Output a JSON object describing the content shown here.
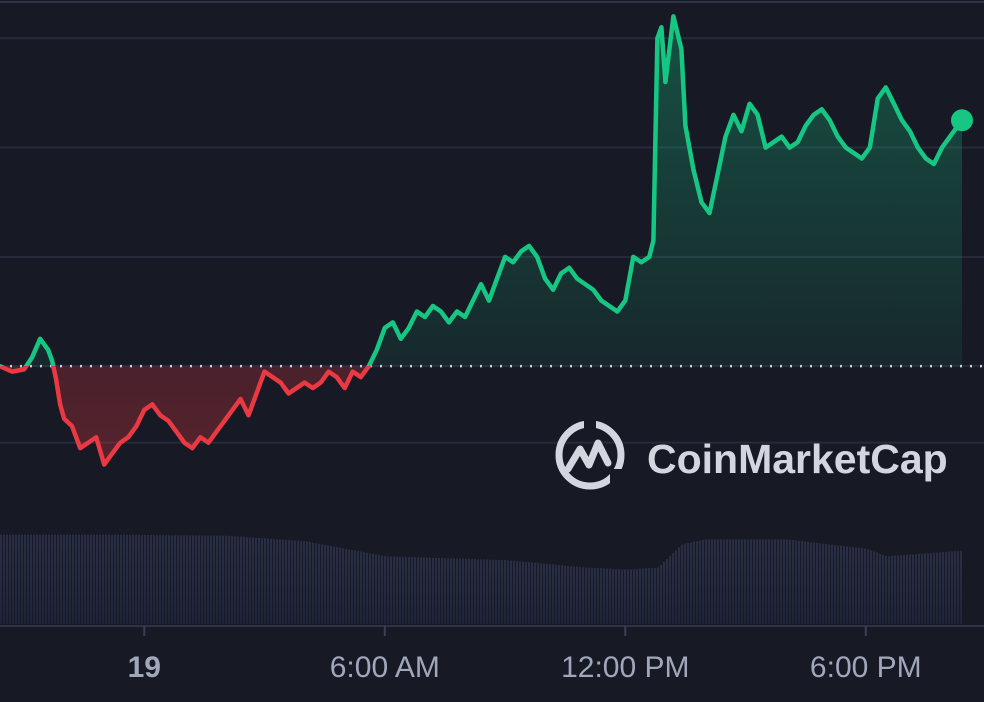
{
  "chart_data": {
    "type": "line",
    "x_ticks": [
      "19",
      "6:00 AM",
      "12:00 PM",
      "6:00 PM"
    ],
    "x_tick_hours": [
      0,
      6,
      12,
      18
    ],
    "x_range_hours": [
      -3.6,
      20.4
    ],
    "baseline_value": 0,
    "y_range": [
      -95,
      335
    ],
    "gridline_values": [
      -70,
      0,
      100,
      200,
      300
    ],
    "grid": true,
    "series": [
      {
        "points": [
          [
            -3.6,
            0
          ],
          [
            -3.3,
            -5
          ],
          [
            -3.0,
            -3
          ],
          [
            -2.8,
            8
          ],
          [
            -2.6,
            25
          ],
          [
            -2.4,
            15
          ],
          [
            -2.3,
            5
          ],
          [
            -2.2,
            -12
          ],
          [
            -2.1,
            -35
          ],
          [
            -2.0,
            -48
          ],
          [
            -1.8,
            -55
          ],
          [
            -1.6,
            -75
          ],
          [
            -1.4,
            -70
          ],
          [
            -1.2,
            -65
          ],
          [
            -1.0,
            -90
          ],
          [
            -0.8,
            -80
          ],
          [
            -0.6,
            -70
          ],
          [
            -0.4,
            -65
          ],
          [
            -0.2,
            -55
          ],
          [
            0.0,
            -40
          ],
          [
            0.2,
            -35
          ],
          [
            0.4,
            -45
          ],
          [
            0.6,
            -50
          ],
          [
            0.8,
            -60
          ],
          [
            1.0,
            -70
          ],
          [
            1.2,
            -75
          ],
          [
            1.4,
            -65
          ],
          [
            1.6,
            -70
          ],
          [
            1.8,
            -60
          ],
          [
            2.0,
            -50
          ],
          [
            2.2,
            -40
          ],
          [
            2.4,
            -30
          ],
          [
            2.6,
            -45
          ],
          [
            2.8,
            -25
          ],
          [
            3.0,
            -5
          ],
          [
            3.2,
            -10
          ],
          [
            3.4,
            -15
          ],
          [
            3.6,
            -25
          ],
          [
            3.8,
            -20
          ],
          [
            4.0,
            -15
          ],
          [
            4.2,
            -20
          ],
          [
            4.4,
            -15
          ],
          [
            4.6,
            -5
          ],
          [
            4.8,
            -10
          ],
          [
            5.0,
            -20
          ],
          [
            5.2,
            -5
          ],
          [
            5.4,
            -10
          ],
          [
            5.6,
            0
          ],
          [
            5.8,
            15
          ],
          [
            6.0,
            35
          ],
          [
            6.2,
            40
          ],
          [
            6.4,
            25
          ],
          [
            6.6,
            35
          ],
          [
            6.8,
            50
          ],
          [
            7.0,
            45
          ],
          [
            7.2,
            55
          ],
          [
            7.4,
            50
          ],
          [
            7.6,
            40
          ],
          [
            7.8,
            50
          ],
          [
            8.0,
            45
          ],
          [
            8.2,
            60
          ],
          [
            8.4,
            75
          ],
          [
            8.6,
            60
          ],
          [
            8.8,
            80
          ],
          [
            9.0,
            100
          ],
          [
            9.2,
            95
          ],
          [
            9.4,
            105
          ],
          [
            9.6,
            110
          ],
          [
            9.8,
            100
          ],
          [
            10.0,
            80
          ],
          [
            10.2,
            70
          ],
          [
            10.4,
            85
          ],
          [
            10.6,
            90
          ],
          [
            10.8,
            80
          ],
          [
            11.0,
            75
          ],
          [
            11.2,
            70
          ],
          [
            11.4,
            60
          ],
          [
            11.6,
            55
          ],
          [
            11.8,
            50
          ],
          [
            12.0,
            60
          ],
          [
            12.2,
            100
          ],
          [
            12.4,
            95
          ],
          [
            12.6,
            100
          ],
          [
            12.7,
            115
          ],
          [
            12.8,
            300
          ],
          [
            12.9,
            310
          ],
          [
            13.0,
            260
          ],
          [
            13.2,
            320
          ],
          [
            13.4,
            290
          ],
          [
            13.5,
            220
          ],
          [
            13.7,
            180
          ],
          [
            13.9,
            150
          ],
          [
            14.1,
            140
          ],
          [
            14.3,
            175
          ],
          [
            14.5,
            210
          ],
          [
            14.7,
            230
          ],
          [
            14.9,
            215
          ],
          [
            15.1,
            240
          ],
          [
            15.3,
            230
          ],
          [
            15.5,
            200
          ],
          [
            15.7,
            205
          ],
          [
            15.9,
            210
          ],
          [
            16.1,
            200
          ],
          [
            16.3,
            205
          ],
          [
            16.5,
            220
          ],
          [
            16.7,
            230
          ],
          [
            16.9,
            235
          ],
          [
            17.1,
            225
          ],
          [
            17.3,
            210
          ],
          [
            17.5,
            200
          ],
          [
            17.7,
            195
          ],
          [
            17.9,
            190
          ],
          [
            18.1,
            200
          ],
          [
            18.3,
            245
          ],
          [
            18.5,
            255
          ],
          [
            18.7,
            240
          ],
          [
            18.9,
            225
          ],
          [
            19.1,
            215
          ],
          [
            19.3,
            200
          ],
          [
            19.5,
            190
          ],
          [
            19.7,
            185
          ],
          [
            19.9,
            200
          ],
          [
            20.1,
            210
          ],
          [
            20.4,
            225
          ]
        ]
      }
    ],
    "volume": [
      [
        -3.6,
        0.95
      ],
      [
        -1.0,
        0.95
      ],
      [
        2.0,
        0.94
      ],
      [
        4.0,
        0.88
      ],
      [
        6.0,
        0.72
      ],
      [
        9.0,
        0.68
      ],
      [
        11.0,
        0.6
      ],
      [
        12.0,
        0.58
      ],
      [
        12.8,
        0.6
      ],
      [
        13.4,
        0.85
      ],
      [
        14.0,
        0.9
      ],
      [
        16.0,
        0.9
      ],
      [
        18.0,
        0.8
      ],
      [
        18.5,
        0.72
      ],
      [
        20.4,
        0.78
      ]
    ],
    "up_color": "#16c784",
    "down_color": "#ea3943"
  },
  "watermark": {
    "text": "CoinMarketCap",
    "icon": "coinmarketcap-logo-icon"
  }
}
